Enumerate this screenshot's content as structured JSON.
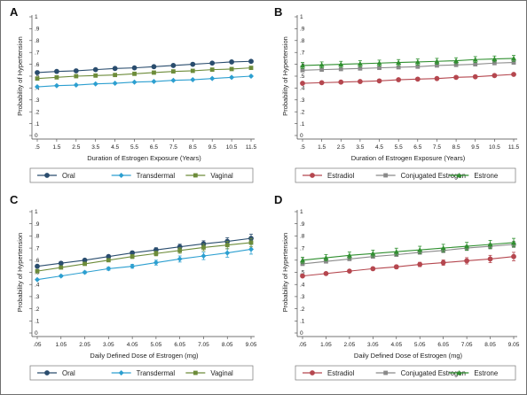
{
  "chart_data": [
    {
      "panel": "A",
      "type": "line",
      "xlabel": "Duration of Estrogen Exposure (Years)",
      "ylabel": "Probability of Hypertension",
      "ylim": [
        0,
        1
      ],
      "y_ticks": [
        "0",
        ".1",
        ".2",
        ".3",
        ".4",
        ".5",
        ".6",
        ".7",
        ".8",
        ".9",
        "1"
      ],
      "x": [
        0.5,
        1.5,
        2.5,
        3.5,
        4.5,
        5.5,
        6.5,
        7.5,
        8.5,
        9.5,
        10.5,
        11.5
      ],
      "x_ticks": [
        ".5",
        "1.5",
        "2.5",
        "3.5",
        "4.5",
        "5.5",
        "6.5",
        "7.5",
        "8.5",
        "9.5",
        "10.5",
        "11.5"
      ],
      "legend_position": "bottom",
      "grid": false,
      "series": [
        {
          "name": "Oral",
          "color": "#2a4d6e",
          "marker": "circle",
          "values": [
            0.53,
            0.54,
            0.545,
            0.555,
            0.565,
            0.57,
            0.58,
            0.59,
            0.6,
            0.61,
            0.62,
            0.625
          ],
          "err": 0.006
        },
        {
          "name": "Transdermal",
          "color": "#2c9fd0",
          "marker": "diamond",
          "values": [
            0.41,
            0.42,
            0.425,
            0.435,
            0.44,
            0.45,
            0.455,
            0.465,
            0.47,
            0.48,
            0.49,
            0.5
          ],
          "err": 0.006
        },
        {
          "name": "Vaginal",
          "color": "#6d8c3a",
          "marker": "square",
          "values": [
            0.48,
            0.49,
            0.5,
            0.505,
            0.51,
            0.52,
            0.53,
            0.54,
            0.545,
            0.555,
            0.56,
            0.57
          ],
          "err": 0.006
        }
      ]
    },
    {
      "panel": "B",
      "type": "line",
      "xlabel": "Duration of Estrogen Exposure (Years)",
      "ylabel": "Probability of Hypertension",
      "ylim": [
        0,
        1
      ],
      "y_ticks": [
        "0",
        ".1",
        ".2",
        ".3",
        ".4",
        ".5",
        ".6",
        ".7",
        ".8",
        ".9",
        "1"
      ],
      "x": [
        0.5,
        1.5,
        2.5,
        3.5,
        4.5,
        5.5,
        6.5,
        7.5,
        8.5,
        9.5,
        10.5,
        11.5
      ],
      "x_ticks": [
        ".5",
        "1.5",
        "2.5",
        "3.5",
        "4.5",
        "5.5",
        "6.5",
        "7.5",
        "8.5",
        "9.5",
        "10.5",
        "11.5"
      ],
      "legend_position": "bottom",
      "grid": false,
      "series": [
        {
          "name": "Estradiol",
          "color": "#b5474f",
          "marker": "circle",
          "values": [
            0.44,
            0.445,
            0.45,
            0.455,
            0.46,
            0.47,
            0.475,
            0.48,
            0.49,
            0.495,
            0.505,
            0.515
          ],
          "err": 0.006
        },
        {
          "name": "Conjugated Estrogen",
          "color": "#8a8a8a",
          "marker": "square",
          "values": [
            0.55,
            0.555,
            0.56,
            0.565,
            0.57,
            0.575,
            0.58,
            0.59,
            0.595,
            0.6,
            0.61,
            0.615
          ],
          "err": 0.008
        },
        {
          "name": "Estrone",
          "color": "#2f8f2f",
          "marker": "triangle",
          "values": [
            0.59,
            0.595,
            0.6,
            0.605,
            0.61,
            0.615,
            0.62,
            0.625,
            0.63,
            0.64,
            0.645,
            0.65
          ],
          "err": 0.025
        }
      ]
    },
    {
      "panel": "C",
      "type": "line",
      "xlabel": "Daily Defined Dose of Estrogen (mg)",
      "ylabel": "Probability of Hypertension",
      "ylim": [
        0,
        1
      ],
      "y_ticks": [
        "0",
        ".1",
        ".2",
        ".3",
        ".4",
        ".5",
        ".6",
        ".7",
        ".8",
        ".9",
        "1"
      ],
      "x": [
        0.05,
        1.05,
        2.05,
        3.05,
        4.05,
        5.05,
        6.05,
        7.05,
        8.05,
        9.05
      ],
      "x_ticks": [
        ".05",
        "1.05",
        "2.05",
        "3.05",
        "4.05",
        "5.05",
        "6.05",
        "7.05",
        "8.05",
        "9.05"
      ],
      "legend_position": "bottom",
      "grid": false,
      "series": [
        {
          "name": "Oral",
          "color": "#2a4d6e",
          "marker": "circle",
          "values": [
            0.55,
            0.575,
            0.6,
            0.63,
            0.66,
            0.685,
            0.71,
            0.735,
            0.755,
            0.78
          ],
          "err": [
            0.005,
            0.008,
            0.01,
            0.012,
            0.015,
            0.018,
            0.022,
            0.025,
            0.03,
            0.035
          ]
        },
        {
          "name": "Transdermal",
          "color": "#2c9fd0",
          "marker": "diamond",
          "values": [
            0.44,
            0.47,
            0.5,
            0.53,
            0.55,
            0.58,
            0.61,
            0.635,
            0.66,
            0.69
          ],
          "err": [
            0.005,
            0.008,
            0.01,
            0.013,
            0.016,
            0.02,
            0.025,
            0.03,
            0.035,
            0.04
          ]
        },
        {
          "name": "Vaginal",
          "color": "#6d8c3a",
          "marker": "square",
          "values": [
            0.51,
            0.54,
            0.57,
            0.6,
            0.63,
            0.655,
            0.68,
            0.705,
            0.725,
            0.745
          ],
          "err": [
            0.005,
            0.008,
            0.01,
            0.013,
            0.016,
            0.019,
            0.023,
            0.027,
            0.031,
            0.035
          ]
        }
      ]
    },
    {
      "panel": "D",
      "type": "line",
      "xlabel": "Daily Defined Dose of Estrogen (mg)",
      "ylabel": "Probability of Hypertension",
      "ylim": [
        0,
        1
      ],
      "y_ticks": [
        "0",
        ".1",
        ".2",
        ".3",
        ".4",
        ".5",
        ".6",
        ".7",
        ".8",
        ".9",
        "1"
      ],
      "x": [
        0.05,
        1.05,
        2.05,
        3.05,
        4.05,
        5.05,
        6.05,
        7.05,
        8.05,
        9.05
      ],
      "x_ticks": [
        ".05",
        "1.05",
        "2.05",
        "3.05",
        "4.05",
        "5.05",
        "6.05",
        "7.05",
        "8.05",
        "9.05"
      ],
      "legend_position": "bottom",
      "grid": false,
      "series": [
        {
          "name": "Estradiol",
          "color": "#b5474f",
          "marker": "circle",
          "values": [
            0.47,
            0.49,
            0.51,
            0.53,
            0.545,
            0.565,
            0.58,
            0.595,
            0.61,
            0.63
          ],
          "err": [
            0.006,
            0.008,
            0.01,
            0.012,
            0.015,
            0.018,
            0.022,
            0.026,
            0.03,
            0.035
          ]
        },
        {
          "name": "Conjugated Estrogen",
          "color": "#8a8a8a",
          "marker": "square",
          "values": [
            0.57,
            0.59,
            0.61,
            0.63,
            0.645,
            0.665,
            0.68,
            0.7,
            0.715,
            0.73
          ],
          "err": [
            0.006,
            0.008,
            0.01,
            0.012,
            0.014,
            0.016,
            0.018,
            0.02,
            0.022,
            0.025
          ]
        },
        {
          "name": "Estrone",
          "color": "#2f8f2f",
          "marker": "triangle",
          "values": [
            0.6,
            0.62,
            0.64,
            0.655,
            0.67,
            0.685,
            0.7,
            0.715,
            0.73,
            0.745
          ],
          "err": [
            0.025,
            0.026,
            0.027,
            0.028,
            0.029,
            0.03,
            0.031,
            0.032,
            0.033,
            0.035
          ]
        }
      ]
    }
  ]
}
